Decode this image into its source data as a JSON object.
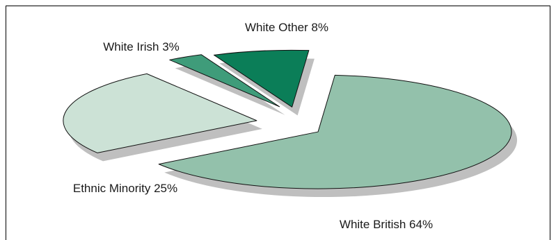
{
  "chart_data": {
    "type": "pie",
    "style": "3d-exploded",
    "slices": [
      {
        "label": "White British",
        "value": 64,
        "display": "White British 64%",
        "color": "#93c1ab"
      },
      {
        "label": "Ethnic Minority",
        "value": 25,
        "display": "Ethnic Minority 25%",
        "color": "#cce2d6"
      },
      {
        "label": "White Irish",
        "value": 3,
        "display": "White Irish 3%",
        "color": "#3f9c7a"
      },
      {
        "label": "White Other",
        "value": 8,
        "display": "White Other 8%",
        "color": "#0b7e58"
      }
    ],
    "shadow_color": "#bfbfbf"
  }
}
